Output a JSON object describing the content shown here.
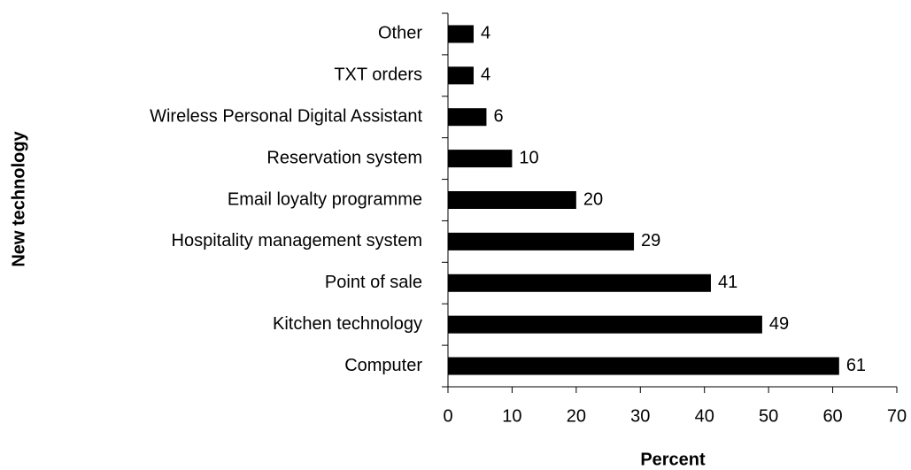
{
  "chart_data": {
    "type": "barh",
    "categories": [
      "Other",
      "TXT orders",
      "Wireless Personal Digital Assistant",
      "Reservation system",
      "Email loyalty programme",
      "Hospitality management system",
      "Point of sale",
      "Kitchen technology",
      "Computer"
    ],
    "values": [
      4,
      4,
      6,
      10,
      20,
      29,
      41,
      49,
      61
    ],
    "color": "#000000",
    "xlim": [
      0,
      70
    ],
    "xticks": [
      0,
      10,
      20,
      30,
      40,
      50,
      60,
      70
    ],
    "xlabel": "Percent",
    "ylabel": "New technology",
    "grid": false
  }
}
